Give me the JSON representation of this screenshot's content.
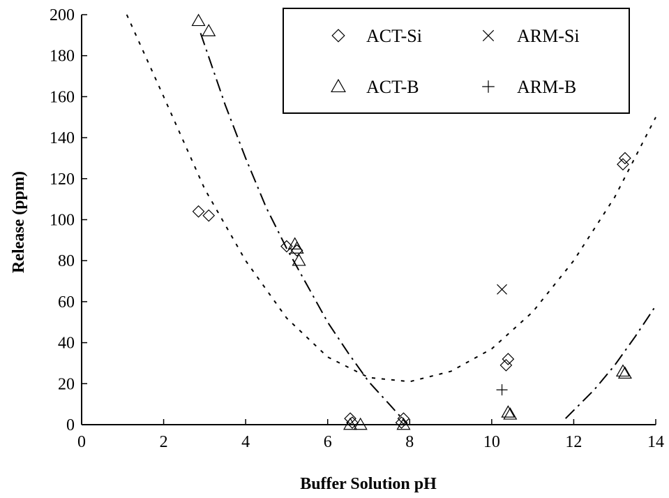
{
  "chart_data": {
    "type": "scatter",
    "title": "",
    "xlabel": "Buffer Solution pH",
    "ylabel": "Release (ppm)",
    "xlim": [
      0,
      14
    ],
    "ylim": [
      0,
      200
    ],
    "xticks": [
      "0",
      "2",
      "4",
      "6",
      "8",
      "10",
      "12",
      "14"
    ],
    "yticks": [
      "0",
      "20",
      "40",
      "60",
      "80",
      "100",
      "120",
      "140",
      "160",
      "180",
      "200"
    ],
    "grid": false,
    "legend_position": "top-right",
    "series": [
      {
        "name": "ACT-Si",
        "marker": "diamond",
        "points": [
          [
            2.85,
            104
          ],
          [
            3.1,
            102
          ],
          [
            5.0,
            87
          ],
          [
            5.25,
            85
          ],
          [
            6.55,
            3
          ],
          [
            6.6,
            1
          ],
          [
            7.85,
            3
          ],
          [
            7.8,
            1
          ],
          [
            10.4,
            32
          ],
          [
            10.35,
            29
          ],
          [
            13.2,
            127
          ],
          [
            13.25,
            130
          ]
        ]
      },
      {
        "name": "ARM-Si",
        "marker": "x",
        "points": [
          [
            10.25,
            66
          ]
        ]
      },
      {
        "name": "ACT-B",
        "marker": "triangle",
        "points": [
          [
            2.85,
            197
          ],
          [
            3.1,
            192
          ],
          [
            5.2,
            88
          ],
          [
            5.25,
            86
          ],
          [
            5.3,
            80
          ],
          [
            6.55,
            0
          ],
          [
            6.8,
            0
          ],
          [
            7.85,
            0
          ],
          [
            10.4,
            6
          ],
          [
            10.45,
            5
          ],
          [
            13.2,
            26
          ],
          [
            13.25,
            25
          ]
        ]
      },
      {
        "name": "ARM-B",
        "marker": "plus",
        "points": [
          [
            10.25,
            17
          ]
        ]
      }
    ],
    "fits": [
      {
        "style": "dashed",
        "x": [
          1.1,
          2,
          3,
          4,
          5,
          6,
          7,
          8,
          9,
          10,
          11,
          12,
          13,
          14
        ],
        "y": [
          200,
          160,
          115,
          80,
          52,
          33,
          23,
          21,
          26,
          37,
          55,
          80,
          111,
          150
        ]
      },
      {
        "style": "dash-dot",
        "segments": [
          {
            "x": [
              2.9,
              3.5,
              4,
              4.5,
              5,
              5.5,
              6,
              6.5,
              7,
              7.5,
              7.95
            ],
            "y": [
              191,
              156,
              130,
              106,
              86,
              68,
              50,
              35,
              21,
              10,
              0
            ]
          },
          {
            "x": [
              11.8,
              12.5,
              13,
              13.5,
              14
            ],
            "y": [
              3,
              17,
              29,
              43,
              58
            ]
          }
        ]
      }
    ]
  },
  "legend": {
    "items": [
      {
        "label": "ACT-Si",
        "marker": "diamond"
      },
      {
        "label": "ARM-Si",
        "marker": "x"
      },
      {
        "label": "ACT-B",
        "marker": "triangle"
      },
      {
        "label": "ARM-B",
        "marker": "plus"
      }
    ]
  }
}
